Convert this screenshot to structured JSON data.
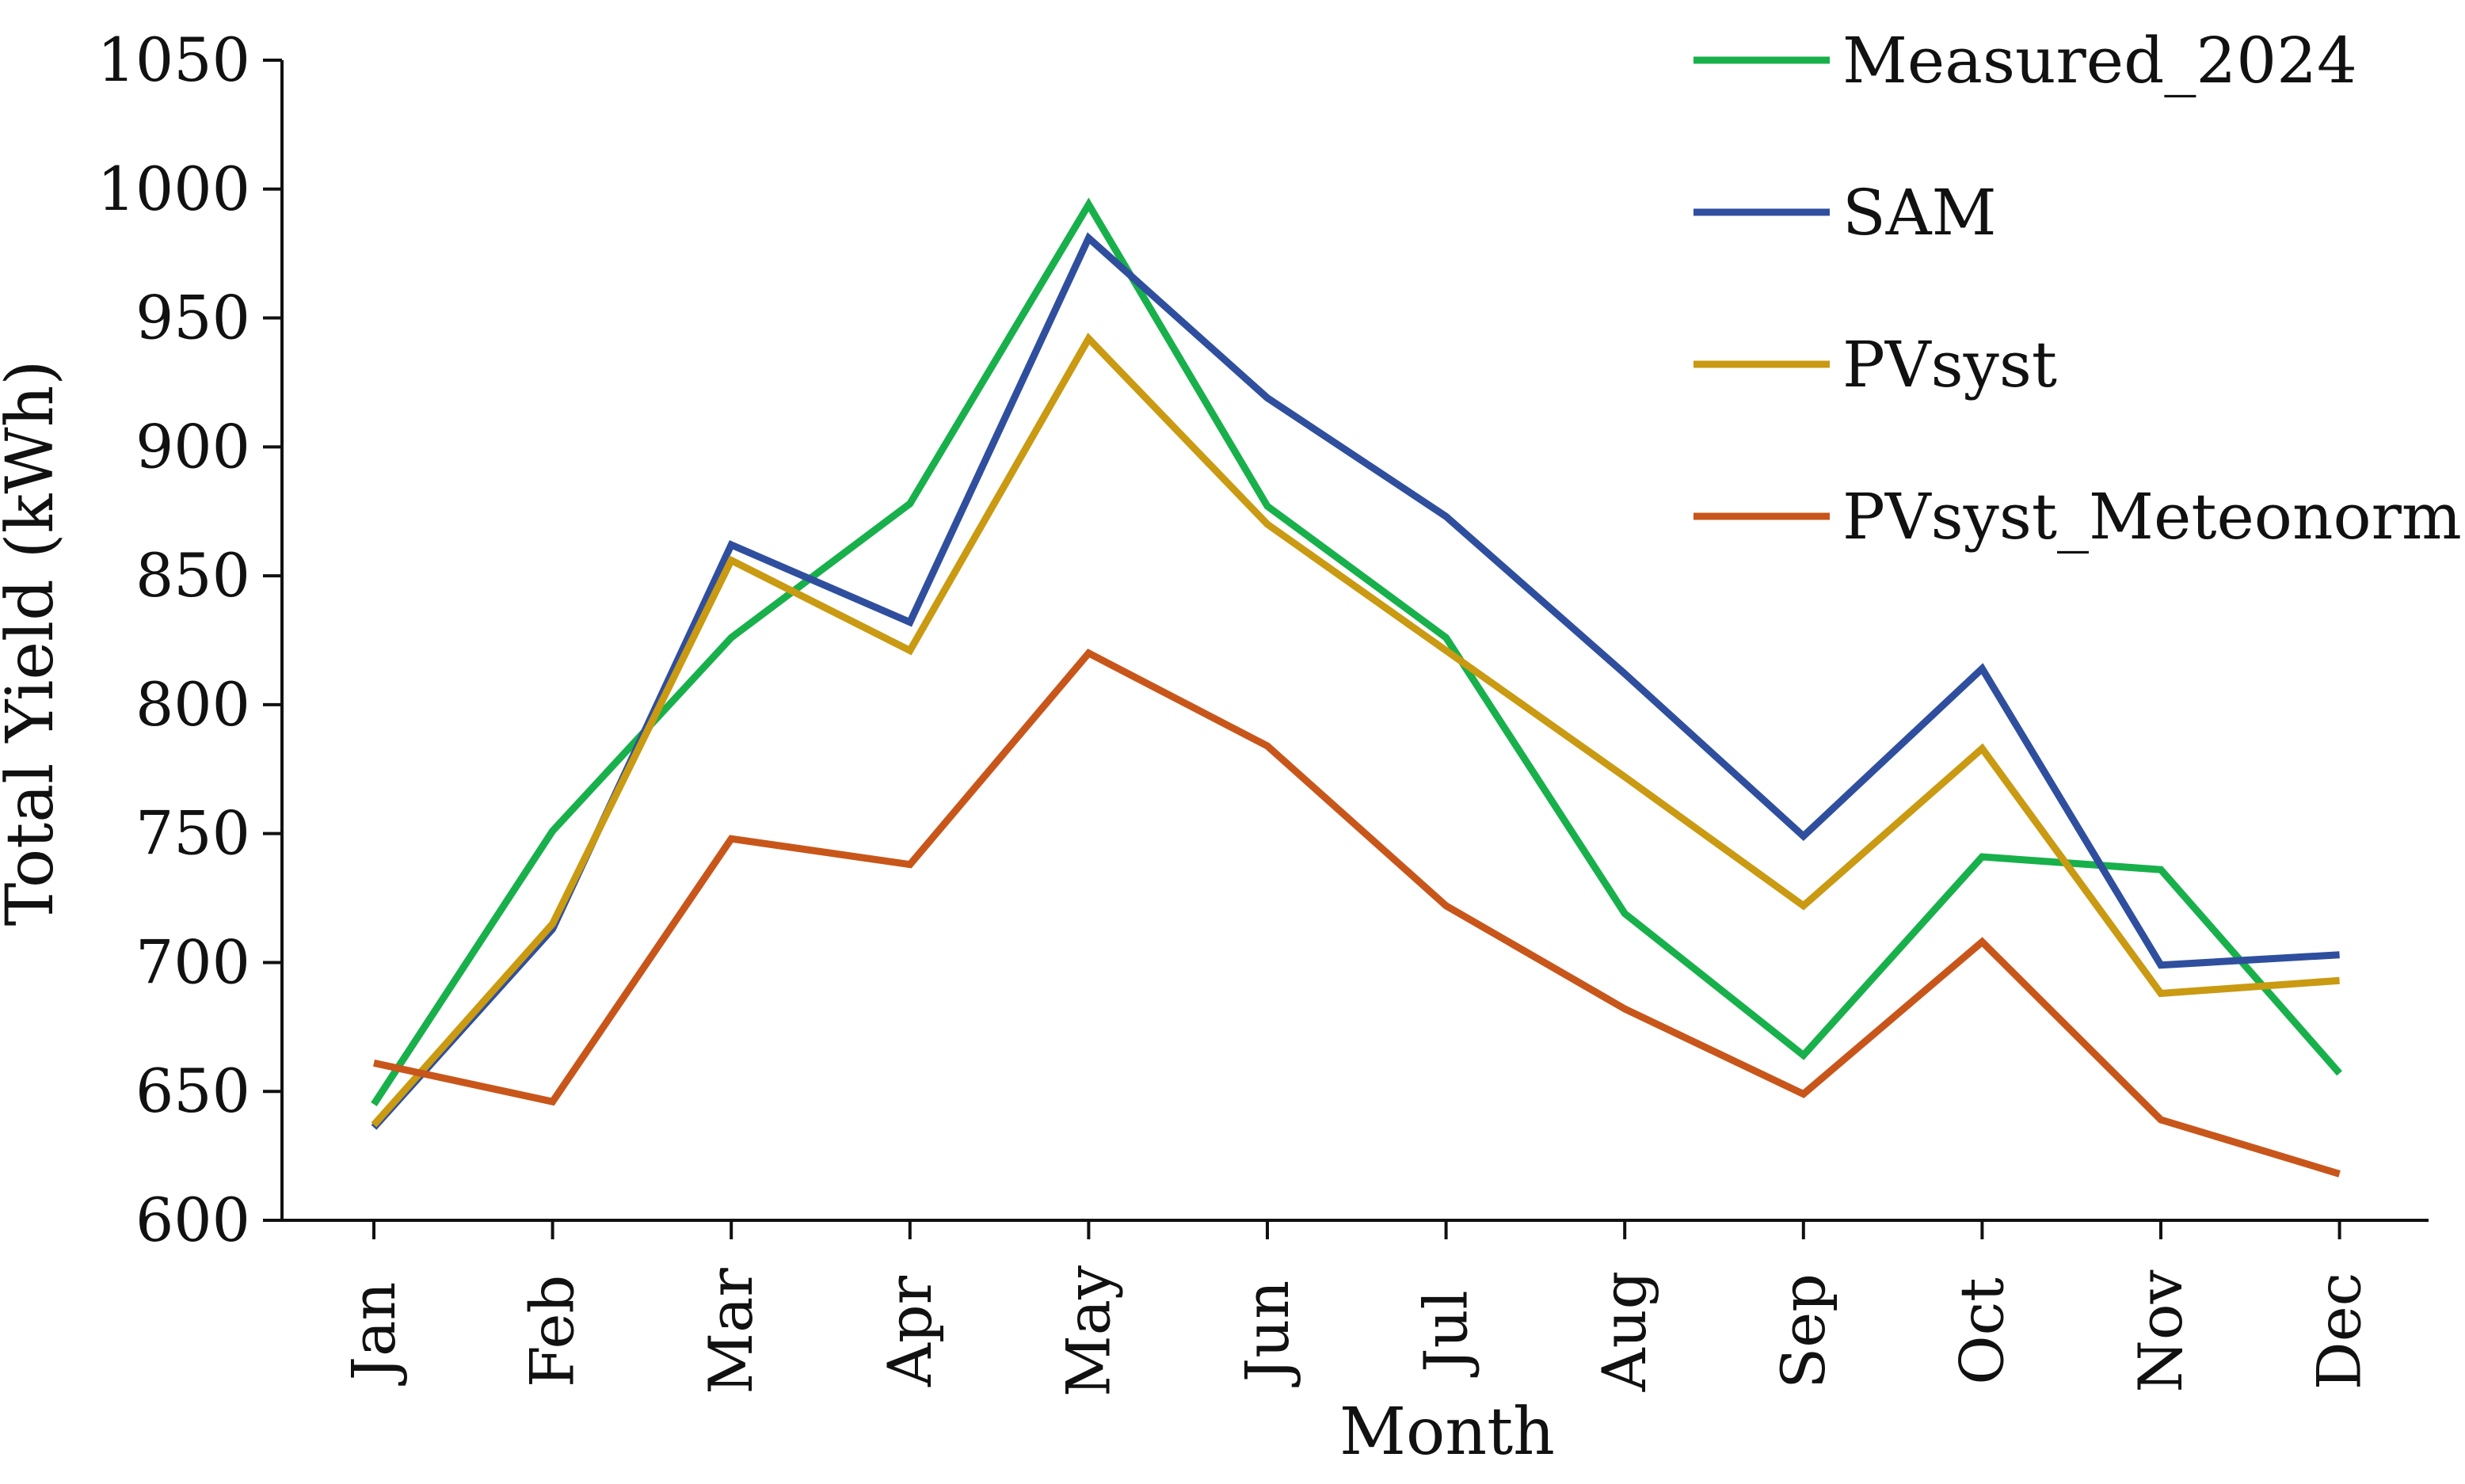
{
  "chart_data": {
    "type": "line",
    "title": "",
    "xlabel": "Month",
    "ylabel": "Total Yield (kWh)",
    "categories": [
      "Jan",
      "Feb",
      "Mar",
      "Apr",
      "May",
      "Jun",
      "Jul",
      "Aug",
      "Sep",
      "Oct",
      "Nov",
      "Dec"
    ],
    "ylim": [
      600,
      1050
    ],
    "yticks": [
      "600",
      "650",
      "700",
      "750",
      "800",
      "850",
      "900",
      "950",
      "1000",
      "1050"
    ],
    "grid": false,
    "legend_position": "top-right",
    "series": [
      {
        "name": "Measured_2024",
        "color": "#18b04b",
        "values": [
          645,
          751,
          826,
          878,
          994,
          877,
          826,
          719,
          664,
          741,
          736,
          657
        ]
      },
      {
        "name": "SAM",
        "color": "#2f4f9e",
        "values": [
          636,
          713,
          862,
          832,
          981,
          919,
          873,
          812,
          749,
          814,
          699,
          703
        ]
      },
      {
        "name": "PVsyst",
        "color": "#c99a12",
        "values": [
          637,
          715,
          856,
          821,
          942,
          870,
          821,
          772,
          722,
          783,
          688,
          693
        ]
      },
      {
        "name": "PVsyst_Meteonorm",
        "color": "#c8561a",
        "values": [
          661,
          646,
          748,
          738,
          820,
          784,
          722,
          682,
          649,
          708,
          639,
          618
        ]
      }
    ]
  }
}
